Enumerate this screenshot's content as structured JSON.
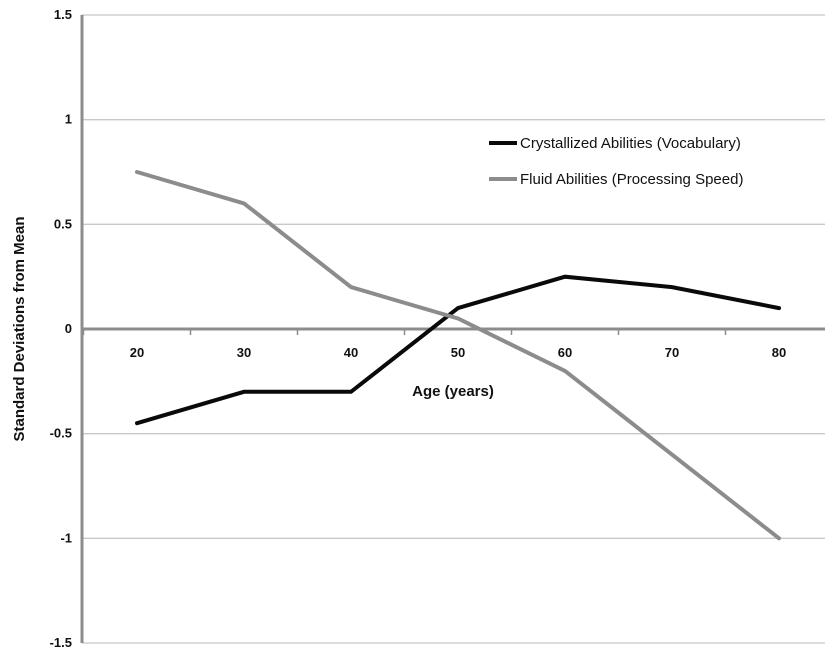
{
  "chart_data": {
    "type": "line",
    "title": "",
    "xlabel": "Age (years)",
    "ylabel": "Standard Deviations from Mean",
    "x": [
      20,
      30,
      40,
      50,
      60,
      70,
      80
    ],
    "xlim": [
      15,
      85
    ],
    "ylim": [
      -1.5,
      1.5
    ],
    "yticks": [
      1.5,
      1,
      0.5,
      0,
      -0.5,
      -1,
      -1.5
    ],
    "ytick_labels": [
      "1.5",
      "1",
      "0.5",
      "0",
      "-0.5",
      "-1",
      "-1.5"
    ],
    "xtick_labels": [
      "20",
      "30",
      "40",
      "50",
      "60",
      "70",
      "80"
    ],
    "grid": true,
    "legend_position": "top-right",
    "series": [
      {
        "name": "Crystallized Abilities (Vocabulary)",
        "color": "#0a0a0a",
        "values": [
          -0.45,
          -0.3,
          -0.3,
          0.1,
          0.25,
          0.2,
          0.1
        ]
      },
      {
        "name": "Fluid Abilities (Processing Speed)",
        "color": "#8c8c8c",
        "values": [
          0.75,
          0.6,
          0.2,
          0.05,
          -0.2,
          -0.6,
          -1.0
        ]
      }
    ],
    "colors": {
      "grid": "#c8c8c8",
      "axis": "#8c8c8c"
    }
  }
}
